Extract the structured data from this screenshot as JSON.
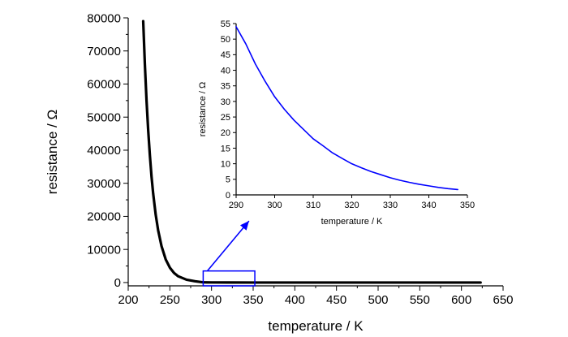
{
  "chart_data": [
    {
      "type": "line",
      "xlabel": "temperature / K",
      "ylabel": "resistance / Ω",
      "xlim": [
        200,
        650
      ],
      "ylim": [
        -1000,
        80000
      ],
      "x_ticks": [
        200,
        250,
        300,
        350,
        400,
        450,
        500,
        550,
        600,
        650
      ],
      "y_ticks": [
        0,
        10000,
        20000,
        30000,
        40000,
        50000,
        60000,
        70000,
        80000
      ],
      "grid": false,
      "color": "#000000",
      "series": [
        {
          "x": [
            218,
            220,
            222,
            224,
            226,
            228,
            230,
            233,
            236,
            240,
            245,
            250,
            255,
            260,
            270,
            280,
            290,
            300,
            320,
            350,
            400,
            500,
            600,
            623
          ],
          "y": [
            79000,
            66000,
            55000,
            46000,
            38500,
            32000,
            26800,
            20500,
            15700,
            11000,
            7000,
            4500,
            2900,
            1900,
            850,
            390,
            55,
            29,
            8.5,
            1.4,
            0.3,
            0.1,
            0.05,
            0.05
          ]
        }
      ],
      "annotations": [
        {
          "type": "rectangle",
          "x_range": [
            290,
            352
          ],
          "y_range": [
            -1000,
            3500
          ],
          "color": "#0000ff"
        },
        {
          "type": "arrow",
          "from": [
            295,
            3500
          ],
          "to": [
            345,
            18600
          ],
          "color": "#0000ff"
        }
      ]
    },
    {
      "type": "line",
      "xlabel": "temperature / K",
      "ylabel": "resistance / Ω",
      "xlim": [
        290,
        350
      ],
      "ylim": [
        0,
        55
      ],
      "x_ticks": [
        290,
        300,
        310,
        320,
        330,
        340,
        350
      ],
      "y_ticks": [
        0,
        5,
        10,
        15,
        20,
        25,
        30,
        35,
        40,
        45,
        50,
        55
      ],
      "grid": false,
      "color": "#0000ff",
      "series": [
        {
          "x": [
            290,
            292.5,
            295,
            297.5,
            300,
            302.5,
            305,
            307.5,
            310,
            312.5,
            315,
            317.5,
            320,
            322.5,
            325,
            327.5,
            330,
            332.5,
            335,
            337.5,
            340,
            342.5,
            345,
            347.5
          ],
          "y": [
            54,
            48.5,
            42,
            36.5,
            31.5,
            27.5,
            24,
            21,
            18,
            15.8,
            13.5,
            11.7,
            10,
            8.7,
            7.5,
            6.5,
            5.5,
            4.7,
            4,
            3.4,
            2.9,
            2.4,
            2.0,
            1.7
          ]
        }
      ]
    }
  ]
}
